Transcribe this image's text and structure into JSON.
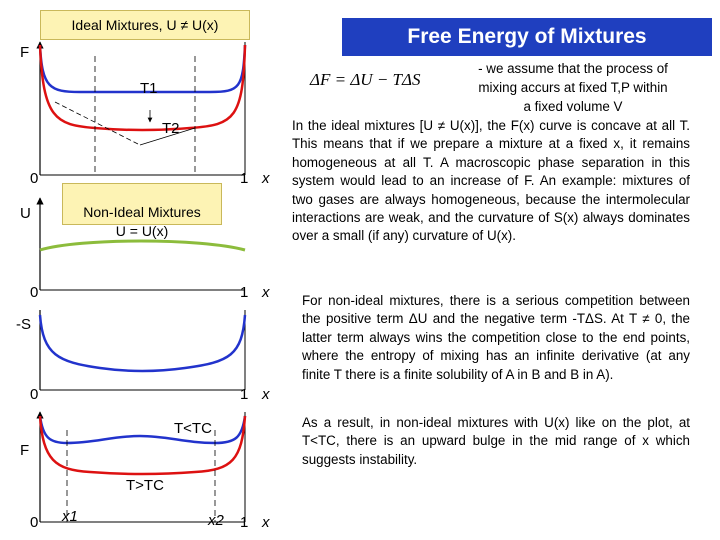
{
  "header": {
    "tag_label": "Ideal Mixtures, U ≠ U(x)",
    "title": "Free Energy of Mixtures"
  },
  "formula": "ΔF = ΔU − TΔS",
  "panel1": {
    "axis_label": "F",
    "curve_t1": "T1",
    "curve_t2": "T2",
    "x0": "0",
    "x1": "1",
    "xvar": "x",
    "colors": {
      "t1": "#2233cc",
      "t2": "#dd1111"
    }
  },
  "panel2": {
    "axis_label": "U",
    "tag": "Non-Ideal Mixtures\nU = U(x)",
    "x0": "0",
    "x1": "1",
    "xvar": "x",
    "colors": {
      "u": "#8cbc3c"
    }
  },
  "panel3": {
    "axis_label": "-S",
    "x0": "0",
    "x1": "1",
    "xvar": "x",
    "colors": {
      "s": "#2233cc"
    }
  },
  "panel4": {
    "axis_label": "F",
    "curve_low": "T<TC",
    "curve_high": "T>TC",
    "x0": "0",
    "x1": "1",
    "x1_mark": "x1",
    "x2_mark": "x2",
    "xvar": "x",
    "colors": {
      "low": "#2233cc",
      "high": "#dd1111"
    }
  },
  "text": {
    "intro": [
      "- we assume that the process of",
      "mixing accurs at fixed T,P within",
      "a fixed volume V"
    ],
    "p1": "In the ideal mixtures [U ≠ U(x)], the F(x) curve is concave at all T. This means that if we prepare a mixture at a fixed x, it remains homogeneous at all T. A macroscopic phase separation in this system would lead to an increase of F. An example: mixtures of two gases are always homogeneous, because the intermolecular interactions are weak, and the curvature of S(x) always dominates over a small (if any) curvature of U(x).",
    "p2": "For non-ideal mixtures, there is a serious competition between the positive term ΔU and the negative term -TΔS. At T ≠ 0, the latter term always wins the competition close to the end points, where the entropy of mixing has an infinite derivative (at any finite T there is a finite solubility of A in B and B in A).",
    "p3": "As a result, in non-ideal mixtures with U(x) like on the plot, at T<TC, there is an upward bulge in the mid range of x which suggests instability."
  }
}
